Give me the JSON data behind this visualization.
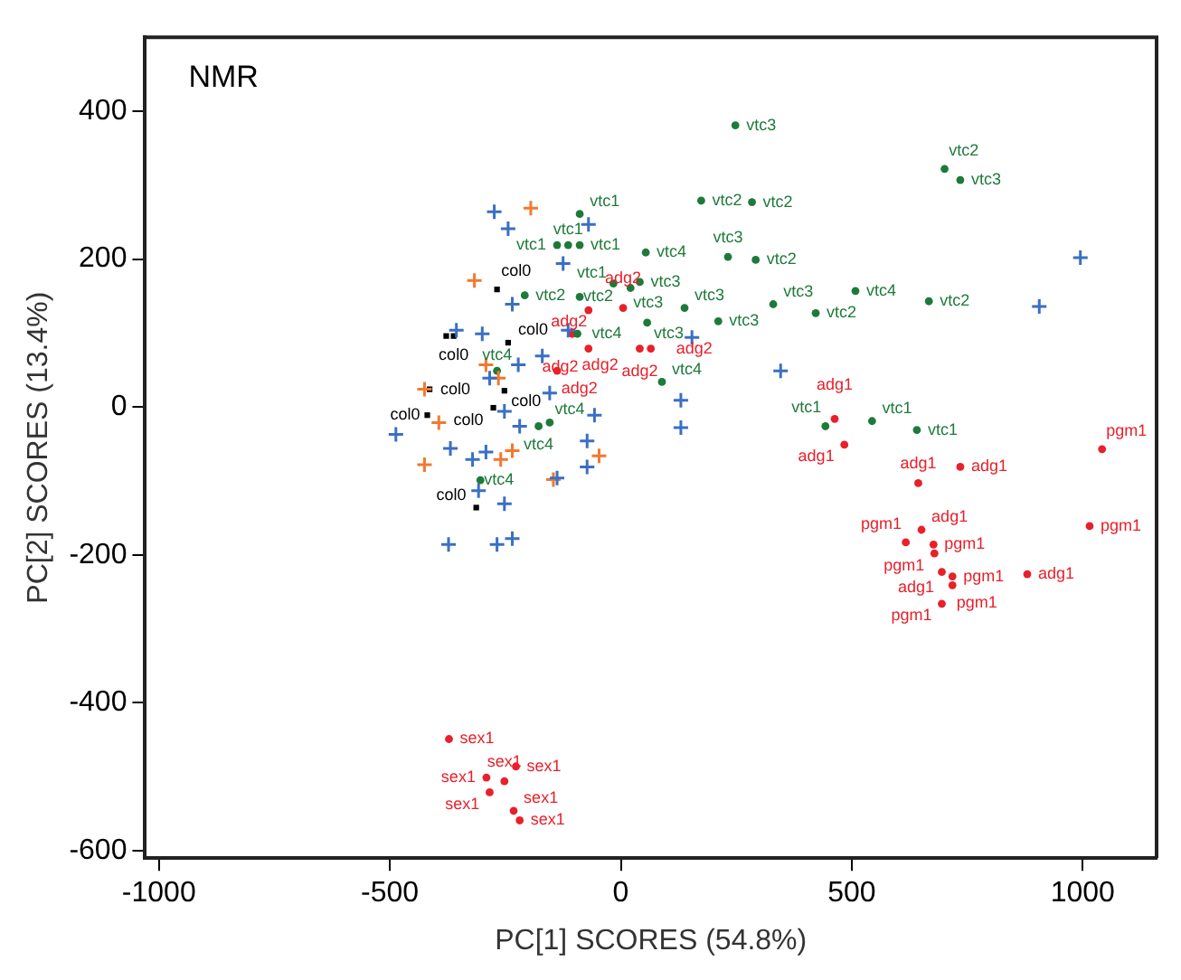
{
  "chart_data": {
    "type": "scatter",
    "title": "NMR",
    "xlabel": "PC[1] SCORES (54.8%)",
    "ylabel": "PC[2] SCORES (13.4%)",
    "xlim": [
      -1030,
      1160
    ],
    "ylim": [
      -610,
      500
    ],
    "xticks": [
      -1000,
      -500,
      0,
      500,
      1000
    ],
    "yticks": [
      -600,
      -400,
      -200,
      0,
      200,
      400
    ],
    "grid": false,
    "legend": false,
    "series": [
      {
        "color": "#3a6fc4",
        "marker": "cross",
        "x": [
          -274,
          -244,
          -70,
          -125,
          -235,
          -300,
          -356,
          -487,
          -369,
          -321,
          -292,
          -308,
          -252,
          -373,
          -268,
          -235,
          -138,
          -73,
          -57,
          -73,
          346,
          130,
          130,
          995,
          906,
          -219,
          -252,
          -170,
          -154,
          -222,
          -284,
          -114,
          154
        ],
        "values": [
          264,
          241,
          247,
          194,
          139,
          99,
          104,
          -37,
          -56,
          -71,
          -61,
          -113,
          -131,
          -186,
          -186,
          -178,
          -96,
          -81,
          -11,
          -46,
          49,
          9,
          -28,
          202,
          136,
          -26,
          -6,
          69,
          19,
          57,
          39,
          104,
          94
        ]
      },
      {
        "color": "#f07a30",
        "marker": "cross",
        "x": [
          -195,
          -317,
          -425,
          -394,
          -425,
          -260,
          -235,
          -146,
          -47,
          -292,
          -265
        ],
        "values": [
          269,
          171,
          24,
          -21,
          -78,
          -71,
          -59,
          -98,
          -66,
          57,
          39
        ]
      },
      {
        "color": "#000000",
        "marker": "square",
        "x": [
          -268,
          -378,
          -362,
          -244,
          -414,
          -252,
          -419,
          -276,
          -313
        ],
        "values": [
          159,
          96,
          96,
          87,
          24,
          22,
          -11,
          -1,
          -136
        ],
        "value_labels": [
          "col0",
          null,
          "col0",
          "col0",
          "col0",
          "col0",
          "col0",
          "col0",
          "col0"
        ]
      },
      {
        "color": "#1e7a3a",
        "marker": "circle",
        "x": [
          248,
          701,
          735,
          174,
          284,
          -89,
          -138,
          -114,
          -89,
          54,
          232,
          292,
          667,
          508,
          330,
          422,
          211,
          138,
          -16,
          21,
          41,
          -208,
          -89,
          57,
          89,
          -94,
          -268,
          -178,
          -154,
          -304,
          443,
          544,
          641
        ],
        "values": [
          381,
          322,
          307,
          279,
          277,
          261,
          219,
          219,
          219,
          209,
          203,
          199,
          143,
          157,
          139,
          127,
          116,
          134,
          167,
          161,
          169,
          151,
          149,
          114,
          34,
          99,
          49,
          -26,
          -21,
          -99,
          -26,
          -19,
          -31
        ],
        "value_labels": [
          "vtc3",
          "vtc2",
          "vtc3",
          "vtc2",
          "vtc2",
          "vtc1",
          "vtc1",
          "vtc1",
          "vtc1",
          "vtc4",
          "vtc3",
          "vtc2",
          "vtc2",
          "vtc4",
          "vtc3",
          "vtc2",
          "vtc3",
          "vtc3",
          "vtc1",
          "vtc3",
          "vtc3",
          "vtc2",
          "vtc2",
          "vtc3",
          "vtc4",
          "vtc4",
          "vtc4",
          "vtc4",
          "vtc4",
          "vtc4",
          "vtc1",
          "vtc1",
          "vtc1"
        ]
      },
      {
        "color": "#e8202a",
        "marker": "circle",
        "x": [
          463,
          484,
          735,
          644,
          1042,
          651,
          617,
          677,
          679,
          1015,
          695,
          718,
          718,
          880,
          695,
          -105,
          -70,
          -70,
          -138,
          5,
          41,
          65,
          -372,
          -291,
          -284,
          -227,
          -232,
          -219,
          -252
        ],
        "values": [
          -16,
          -51,
          -81,
          -103,
          -57,
          -166,
          -183,
          -186,
          -198,
          -161,
          -223,
          -229,
          -241,
          -226,
          -266,
          99,
          131,
          79,
          49,
          134,
          79,
          79,
          -449,
          -501,
          -521,
          -486,
          -546,
          -559,
          -506
        ],
        "value_labels": [
          "adg1",
          "adg1",
          "adg1",
          "adg1",
          "pgm1",
          "adg1",
          "pgm1",
          "pgm1",
          "pgm1",
          "pgm1",
          "adg1",
          "pgm1",
          "pgm1",
          "adg1",
          "pgm1",
          "adg2",
          "adg2",
          "adg2",
          "adg2",
          "adg2",
          "adg2",
          "adg2",
          "sex1",
          "sex1",
          "sex1",
          "sex1",
          "sex1",
          "sex1",
          "sex1"
        ]
      }
    ]
  }
}
